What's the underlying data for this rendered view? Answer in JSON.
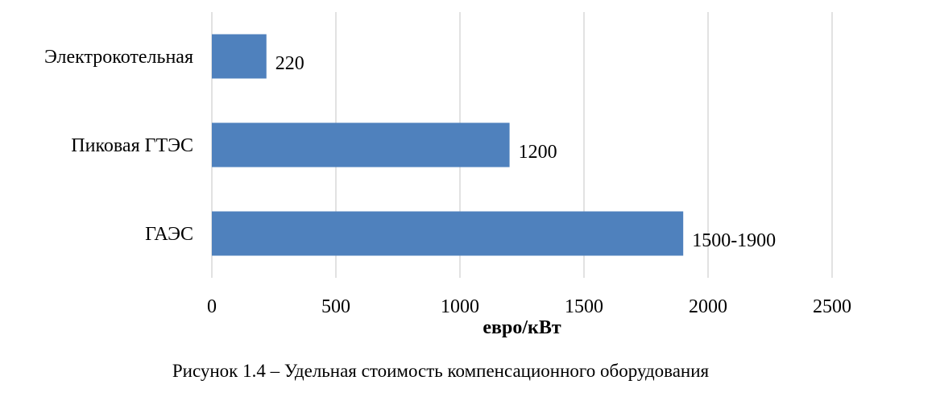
{
  "chart_data": {
    "type": "bar",
    "orientation": "horizontal",
    "categories": [
      "Электрокотельная",
      "Пиковая ГТЭС",
      "ГАЭС"
    ],
    "values": [
      220,
      1200,
      1900
    ],
    "value_labels": [
      "220",
      "1200",
      "1500-1900"
    ],
    "xlabel": "евро/кВт",
    "ylabel": "",
    "xlim": [
      0,
      2500
    ],
    "x_ticks": [
      0,
      500,
      1000,
      1500,
      2000,
      2500
    ],
    "grid": "vertical",
    "legend": "none",
    "bar_color": "#4f81bd"
  },
  "caption": "Рисунок 1.4 – Удельная стоимость компенсационного оборудования"
}
